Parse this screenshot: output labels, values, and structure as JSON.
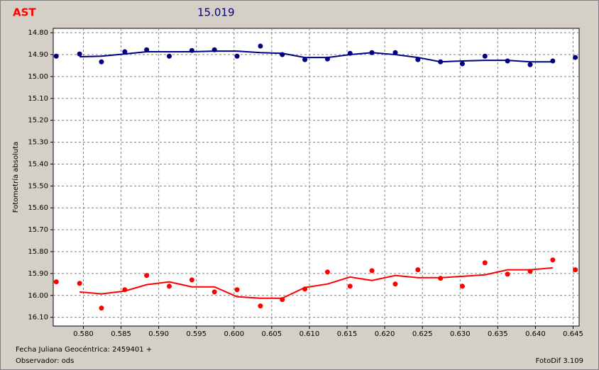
{
  "chart_data": {
    "type": "scatter",
    "title": "AST",
    "title_value": "15.019",
    "y_label": "Fotometría absoluta",
    "x_label": "Fecha Juliana Geocéntrica: 2459401 +",
    "observer": "Observador: ods",
    "software": "FotoDif 3.109",
    "xlim": [
      0.576,
      0.6458
    ],
    "ylim": [
      14.78,
      16.14
    ],
    "y_inverted": true,
    "grid": true,
    "xticks": [
      {
        "value": 0.58,
        "label": "0.580"
      },
      {
        "value": 0.585,
        "label": "0.585"
      },
      {
        "value": 0.59,
        "label": "0.590"
      },
      {
        "value": 0.595,
        "label": "0.595"
      },
      {
        "value": 0.6,
        "label": "0.600"
      },
      {
        "value": 0.605,
        "label": "0.605"
      },
      {
        "value": 0.61,
        "label": "0.610"
      },
      {
        "value": 0.615,
        "label": "0.615"
      },
      {
        "value": 0.62,
        "label": "0.620"
      },
      {
        "value": 0.625,
        "label": "0.625"
      },
      {
        "value": 0.63,
        "label": "0.630"
      },
      {
        "value": 0.635,
        "label": "0.635"
      },
      {
        "value": 0.64,
        "label": "0.640"
      },
      {
        "value": 0.645,
        "label": "0.645"
      }
    ],
    "yticks": [
      {
        "value": 14.8,
        "label": "14.80"
      },
      {
        "value": 14.9,
        "label": "14.90"
      },
      {
        "value": 15,
        "label": "15.00"
      },
      {
        "value": 15.1,
        "label": "15.10"
      },
      {
        "value": 15.2,
        "label": "15.20"
      },
      {
        "value": 15.3,
        "label": "15.30"
      },
      {
        "value": 15.4,
        "label": "15.40"
      },
      {
        "value": 15.5,
        "label": "15.50"
      },
      {
        "value": 15.6,
        "label": "15.60"
      },
      {
        "value": 15.7,
        "label": "15.70"
      },
      {
        "value": 15.8,
        "label": "15.80"
      },
      {
        "value": 15.9,
        "label": "15.90"
      },
      {
        "value": 16,
        "label": "16.00"
      },
      {
        "value": 16.1,
        "label": "16.10"
      }
    ],
    "series": [
      {
        "mode": "markers",
        "color": "#000080",
        "x": [
          0.5764,
          0.5795,
          0.5824,
          0.5855,
          0.5884,
          0.5914,
          0.5944,
          0.5974,
          0.6004,
          0.6035,
          0.6064,
          0.6094,
          0.6124,
          0.6154,
          0.6183,
          0.6214,
          0.6244,
          0.6274,
          0.6303,
          0.6333,
          0.6363,
          0.6393,
          0.6423,
          0.6453
        ],
        "values": [
          14.907,
          14.897,
          14.933,
          14.887,
          14.878,
          14.907,
          14.881,
          14.878,
          14.907,
          14.861,
          14.9,
          14.923,
          14.92,
          14.894,
          14.891,
          14.891,
          14.923,
          14.933,
          14.942,
          14.907,
          14.929,
          14.946,
          14.929,
          14.913
        ]
      },
      {
        "mode": "line",
        "color": "#000080",
        "x": [
          0.5795,
          0.5824,
          0.5855,
          0.5884,
          0.5914,
          0.5944,
          0.5974,
          0.6004,
          0.6035,
          0.6064,
          0.6094,
          0.6124,
          0.6154,
          0.6183,
          0.6214,
          0.6244,
          0.6274,
          0.6303,
          0.6333,
          0.6363,
          0.6393,
          0.6423
        ],
        "values": [
          14.91,
          14.907,
          14.897,
          14.887,
          14.887,
          14.887,
          14.884,
          14.884,
          14.891,
          14.894,
          14.913,
          14.913,
          14.9,
          14.891,
          14.9,
          14.913,
          14.933,
          14.929,
          14.926,
          14.926,
          14.933,
          14.933
        ]
      },
      {
        "mode": "markers",
        "color": "#ff0000",
        "x": [
          0.5764,
          0.5795,
          0.5824,
          0.5855,
          0.5884,
          0.5914,
          0.5944,
          0.5974,
          0.6004,
          0.6035,
          0.6064,
          0.6094,
          0.6124,
          0.6154,
          0.6183,
          0.6214,
          0.6244,
          0.6274,
          0.6303,
          0.6333,
          0.6363,
          0.6393,
          0.6423,
          0.6453
        ],
        "values": [
          15.938,
          15.945,
          16.058,
          15.974,
          15.909,
          15.958,
          15.929,
          15.984,
          15.974,
          16.048,
          16.019,
          15.971,
          15.893,
          15.958,
          15.887,
          15.948,
          15.883,
          15.922,
          15.958,
          15.851,
          15.903,
          15.89,
          15.838,
          15.883
        ]
      },
      {
        "mode": "line",
        "color": "#ff0000",
        "x": [
          0.5795,
          0.5824,
          0.5855,
          0.5884,
          0.5914,
          0.5944,
          0.5974,
          0.6004,
          0.6035,
          0.6064,
          0.6094,
          0.6124,
          0.6154,
          0.6183,
          0.6214,
          0.6244,
          0.6274,
          0.6303,
          0.6333,
          0.6363,
          0.6393,
          0.6423
        ],
        "values": [
          15.984,
          15.993,
          15.98,
          15.951,
          15.938,
          15.961,
          15.961,
          16.006,
          16.013,
          16.013,
          15.964,
          15.948,
          15.916,
          15.932,
          15.909,
          15.919,
          15.919,
          15.913,
          15.906,
          15.883,
          15.883,
          15.874
        ]
      }
    ]
  }
}
